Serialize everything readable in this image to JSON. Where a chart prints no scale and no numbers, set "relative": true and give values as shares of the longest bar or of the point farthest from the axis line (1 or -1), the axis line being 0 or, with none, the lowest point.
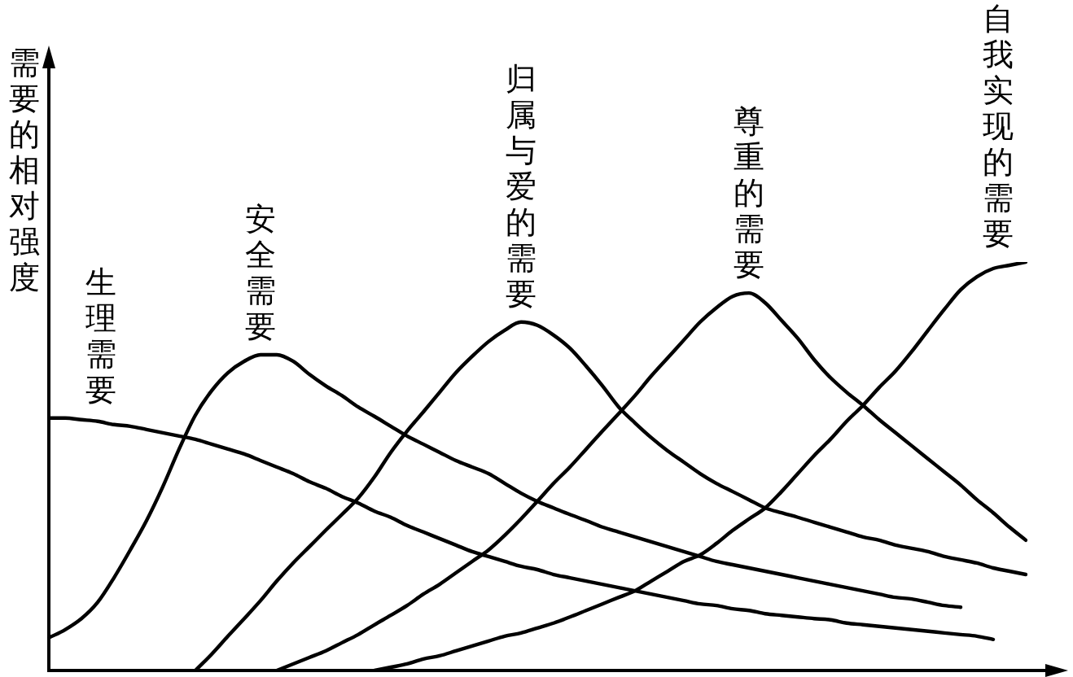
{
  "chart_data": {
    "type": "line",
    "ylabel": "需要的相对强度",
    "relative": true,
    "categories": [
      null,
      null,
      null,
      null,
      null,
      null,
      null,
      null,
      null,
      null,
      null,
      null,
      null,
      null,
      null,
      null,
      null,
      null,
      null,
      null,
      null,
      null,
      null,
      null,
      null,
      null,
      null,
      null,
      null,
      null,
      null,
      null,
      null,
      null,
      null,
      null,
      null,
      null,
      null,
      null,
      null,
      null,
      null,
      null,
      null,
      null,
      null,
      null,
      null,
      null,
      null,
      null,
      null,
      null,
      null,
      null,
      null,
      null,
      null,
      null,
      null
    ],
    "series": [
      {
        "name": "生理需要",
        "color": "#000000",
        "values": [
          0.618,
          0.618,
          0.614,
          0.61,
          0.602,
          0.598,
          0.59,
          0.582,
          0.574,
          0.566,
          0.554,
          0.542,
          0.53,
          0.514,
          0.498,
          0.482,
          0.462,
          0.446,
          0.426,
          0.41,
          0.39,
          0.375,
          0.355,
          0.339,
          0.323,
          0.307,
          0.291,
          0.279,
          0.267,
          0.255,
          0.247,
          0.235,
          0.227,
          0.219,
          0.211,
          0.203,
          0.195,
          0.187,
          0.179,
          0.171,
          0.163,
          0.159,
          0.151,
          0.147,
          0.139,
          0.135,
          0.131,
          0.127,
          0.124,
          0.116,
          0.112,
          0.108,
          0.104,
          0.1,
          0.096,
          0.092,
          0.088,
          0.084,
          0.076,
          null,
          null
        ]
      },
      {
        "name": "安全需要",
        "color": "#000000",
        "values": [
          0.08,
          0.1,
          0.127,
          0.167,
          0.227,
          0.295,
          0.367,
          0.45,
          0.542,
          0.625,
          0.685,
          0.729,
          0.757,
          0.773,
          0.773,
          0.757,
          0.725,
          0.697,
          0.673,
          0.645,
          0.622,
          0.598,
          0.574,
          0.554,
          0.534,
          0.514,
          0.498,
          0.482,
          0.458,
          0.434,
          0.414,
          0.398,
          0.382,
          0.367,
          0.351,
          0.339,
          0.327,
          0.315,
          0.303,
          0.291,
          0.279,
          0.267,
          0.259,
          0.251,
          0.243,
          0.235,
          0.227,
          0.219,
          0.211,
          0.203,
          0.195,
          0.187,
          0.179,
          0.175,
          0.167,
          0.159,
          0.155,
          null,
          null,
          null,
          null
        ]
      },
      {
        "name": "归属与爱的需要",
        "color": "#000000",
        "values": [
          null,
          null,
          null,
          null,
          null,
          null,
          null,
          null,
          null,
          0,
          0.04,
          0.084,
          0.127,
          0.171,
          0.219,
          0.263,
          0.303,
          0.343,
          0.382,
          0.422,
          0.474,
          0.534,
          0.586,
          0.633,
          0.681,
          0.729,
          0.769,
          0.805,
          0.833,
          0.853,
          0.845,
          0.821,
          0.789,
          0.745,
          0.697,
          0.645,
          0.606,
          0.57,
          0.538,
          0.51,
          0.482,
          0.458,
          0.438,
          0.418,
          0.398,
          0.386,
          0.375,
          0.363,
          0.351,
          0.339,
          0.327,
          0.319,
          0.307,
          0.299,
          0.291,
          0.279,
          0.271,
          0.263,
          0.251,
          0.243,
          0.235
        ]
      },
      {
        "name": "尊重的需要",
        "color": "#000000",
        "values": [
          null,
          null,
          null,
          null,
          null,
          null,
          null,
          null,
          null,
          null,
          null,
          null,
          null,
          null,
          0,
          0.016,
          0.032,
          0.048,
          0.068,
          0.088,
          0.112,
          0.135,
          0.159,
          0.187,
          0.211,
          0.239,
          0.267,
          0.295,
          0.331,
          0.371,
          0.414,
          0.458,
          0.498,
          0.542,
          0.586,
          0.629,
          0.673,
          0.721,
          0.765,
          0.809,
          0.853,
          0.888,
          0.916,
          0.924,
          0.9,
          0.857,
          0.813,
          0.761,
          0.717,
          0.681,
          0.649,
          0.614,
          0.582,
          0.55,
          0.518,
          0.486,
          0.454,
          0.418,
          0.386,
          0.351,
          0.319
        ]
      },
      {
        "name": "自我实现的需要",
        "color": "#000000",
        "values": [
          null,
          null,
          null,
          null,
          null,
          null,
          null,
          null,
          null,
          null,
          null,
          null,
          null,
          null,
          null,
          null,
          null,
          null,
          null,
          null,
          0,
          0.008,
          0.016,
          0.028,
          0.036,
          0.048,
          0.06,
          0.072,
          0.084,
          0.092,
          0.104,
          0.116,
          0.131,
          0.147,
          0.163,
          0.179,
          0.195,
          0.219,
          0.243,
          0.267,
          0.283,
          0.311,
          0.343,
          0.371,
          0.398,
          0.438,
          0.482,
          0.526,
          0.566,
          0.61,
          0.649,
          0.693,
          0.733,
          0.781,
          0.833,
          0.884,
          0.932,
          0.964,
          0.984,
          0.992,
          1
        ]
      }
    ]
  }
}
